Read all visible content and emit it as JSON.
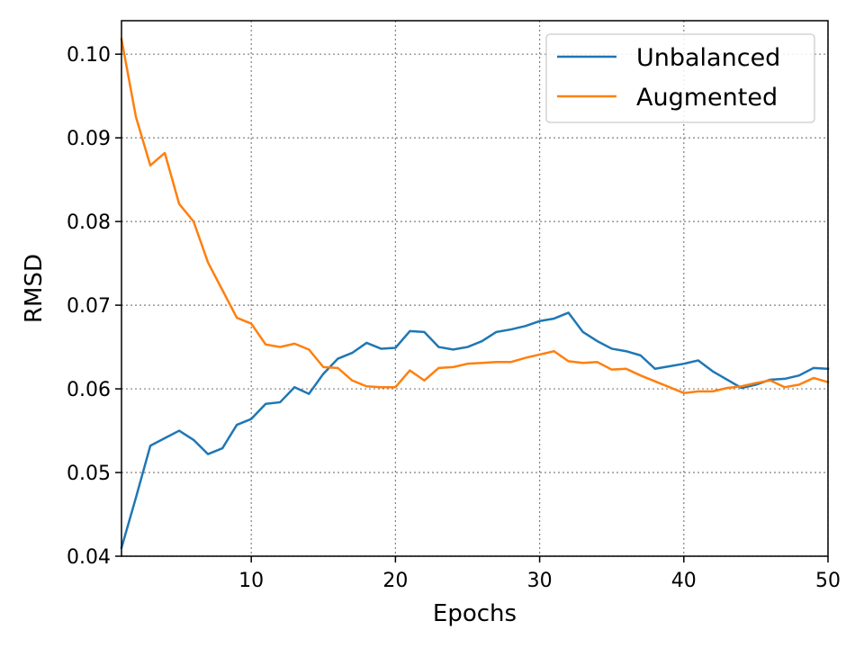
{
  "chart_data": {
    "type": "line",
    "xlabel": "Epochs",
    "ylabel": "RMSD",
    "xlim": [
      1,
      50
    ],
    "ylim": [
      0.04,
      0.104
    ],
    "xticks": [
      10,
      20,
      30,
      40,
      50
    ],
    "yticks": [
      0.04,
      0.05,
      0.06,
      0.07,
      0.08,
      0.09,
      0.1
    ],
    "ytick_labels": [
      "0.04",
      "0.05",
      "0.06",
      "0.07",
      "0.08",
      "0.09",
      "0.10"
    ],
    "grid": true,
    "legend_position": "top-right",
    "x": [
      1,
      2,
      3,
      4,
      5,
      6,
      7,
      8,
      9,
      10,
      11,
      12,
      13,
      14,
      15,
      16,
      17,
      18,
      19,
      20,
      21,
      22,
      23,
      24,
      25,
      26,
      27,
      28,
      29,
      30,
      31,
      32,
      33,
      34,
      35,
      36,
      37,
      38,
      39,
      40,
      41,
      42,
      43,
      44,
      45,
      46,
      47,
      48,
      49,
      50
    ],
    "series": [
      {
        "name": "Unbalanced",
        "color": "#1f77b4",
        "values": [
          0.041,
          0.047,
          0.0532,
          0.0541,
          0.055,
          0.0539,
          0.0522,
          0.0529,
          0.0557,
          0.0564,
          0.0582,
          0.0584,
          0.0602,
          0.0594,
          0.0618,
          0.0636,
          0.0643,
          0.0655,
          0.0648,
          0.0649,
          0.0669,
          0.0668,
          0.065,
          0.0647,
          0.065,
          0.0657,
          0.0668,
          0.0671,
          0.0675,
          0.0681,
          0.0684,
          0.0691,
          0.0668,
          0.0657,
          0.0648,
          0.0645,
          0.064,
          0.0624,
          0.0627,
          0.063,
          0.0634,
          0.0621,
          0.0611,
          0.0601,
          0.0605,
          0.0611,
          0.0612,
          0.0616,
          0.0625,
          0.0624
        ]
      },
      {
        "name": "Augmented",
        "color": "#ff7f0e",
        "values": [
          0.1018,
          0.0925,
          0.0867,
          0.0882,
          0.0821,
          0.08,
          0.0751,
          0.0718,
          0.0685,
          0.0678,
          0.0653,
          0.065,
          0.0654,
          0.0647,
          0.0626,
          0.0625,
          0.061,
          0.0603,
          0.0602,
          0.0602,
          0.0622,
          0.061,
          0.0625,
          0.0626,
          0.063,
          0.0631,
          0.0632,
          0.0632,
          0.0637,
          0.0641,
          0.0645,
          0.0633,
          0.0631,
          0.0632,
          0.0623,
          0.0624,
          0.0616,
          0.0609,
          0.0602,
          0.0595,
          0.0597,
          0.0597,
          0.0601,
          0.0603,
          0.0607,
          0.061,
          0.0602,
          0.0605,
          0.0613,
          0.0608
        ]
      }
    ]
  }
}
